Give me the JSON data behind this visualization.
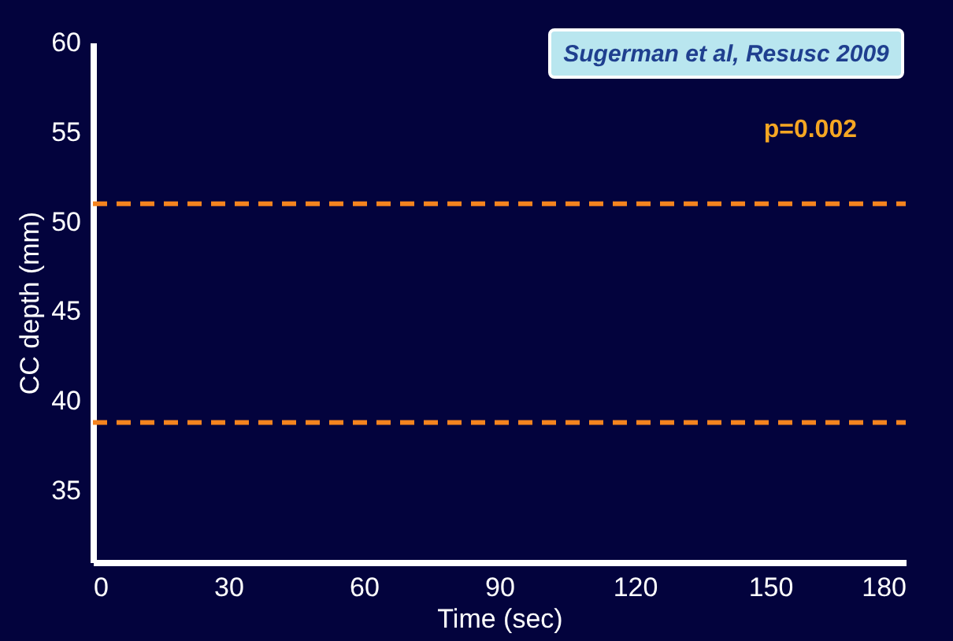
{
  "chart_data": {
    "type": "line",
    "xlabel": "Time (sec)",
    "ylabel": "CC depth (mm)",
    "xlim": [
      0,
      180
    ],
    "xticks": [
      0,
      30,
      60,
      90,
      120,
      150,
      180
    ],
    "ylim": [
      31,
      60
    ],
    "yticks": [
      35,
      40,
      45,
      50,
      55,
      60
    ],
    "ref_lines": [
      {
        "axis": "y",
        "value": 51,
        "color": "#f5841f",
        "line_style": "dashed"
      },
      {
        "axis": "y",
        "value": 38.8,
        "color": "#f5841f",
        "line_style": "dashed"
      }
    ],
    "annotations": [
      "Sugerman et al, Resusc 2009",
      "p=0.002"
    ],
    "grid": false
  }
}
